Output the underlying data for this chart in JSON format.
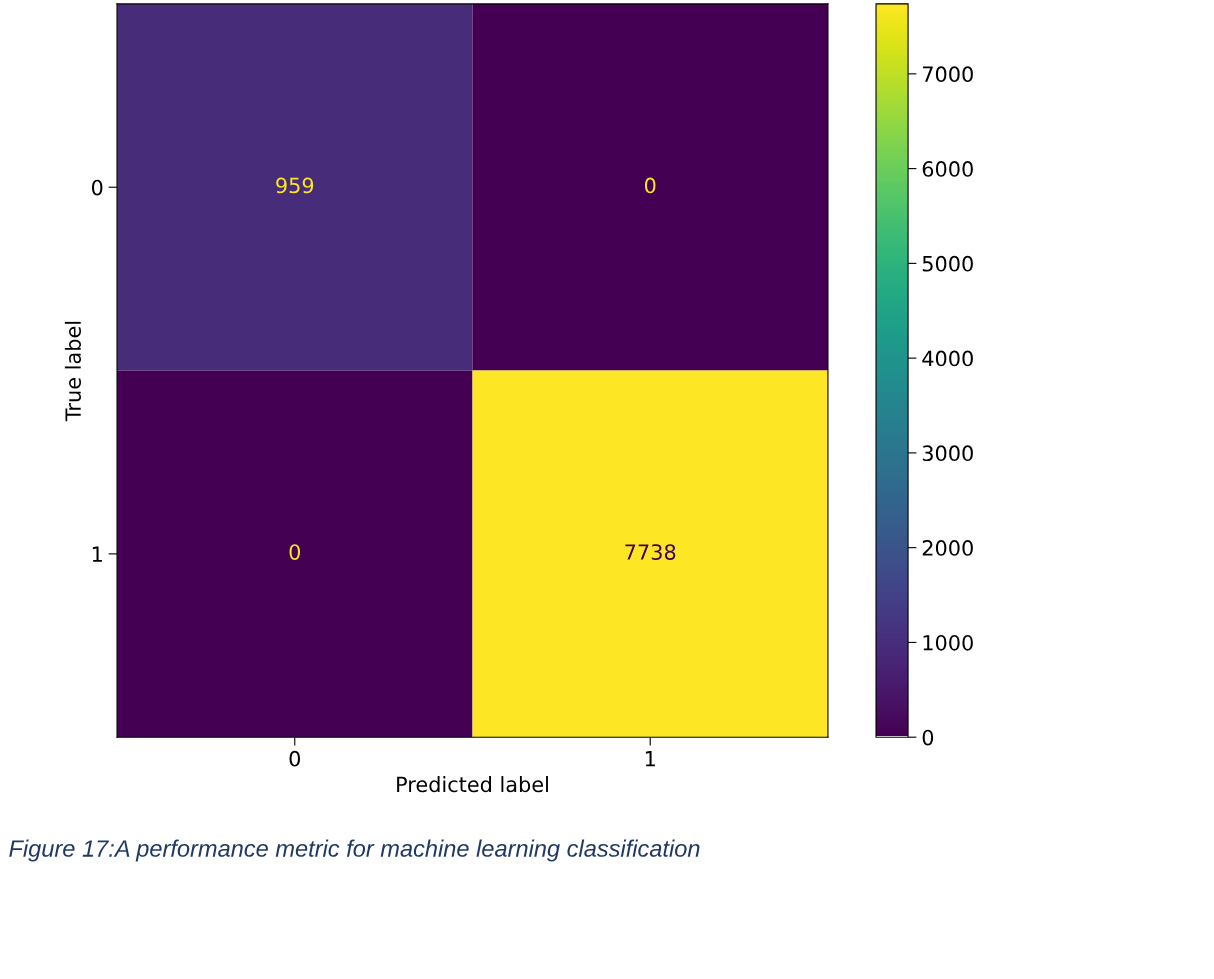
{
  "chart_data": {
    "type": "heatmap",
    "xlabel": "Predicted label",
    "ylabel": "True label",
    "categories": [
      "0",
      "1"
    ],
    "y_categories": [
      "0",
      "1"
    ],
    "cells": [
      [
        959,
        0
      ],
      [
        0,
        7738
      ]
    ],
    "data_labels": true,
    "clim": [
      0,
      7738
    ],
    "cticks": [
      0,
      1000,
      2000,
      3000,
      4000,
      5000,
      6000,
      7000
    ],
    "annotations": [
      "Figure 17:A performance metric for machine learning classification"
    ]
  }
}
